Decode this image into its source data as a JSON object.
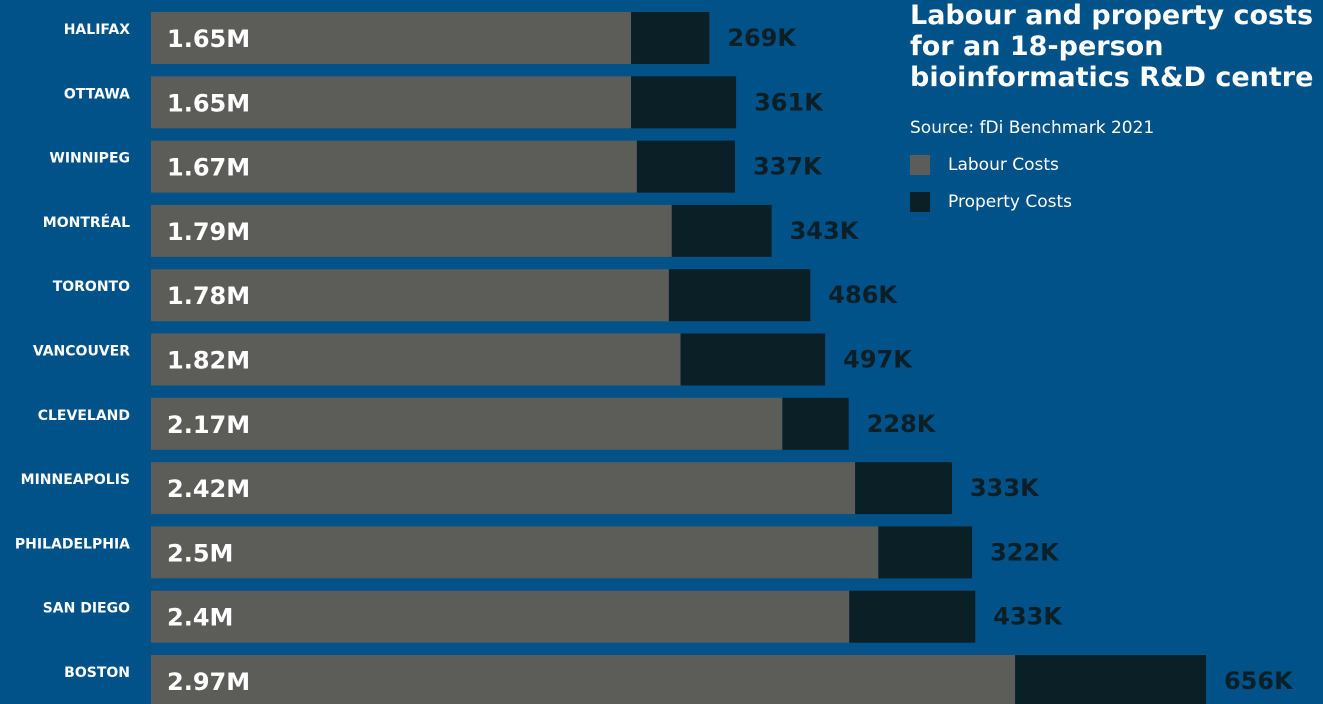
{
  "header": {
    "title": "Labour and property costs for an 18-person bioinformatics R&D centre",
    "source": "Source: fDi Benchmark 2021"
  },
  "legend": [
    {
      "label": "Labour Costs",
      "color": "#5c5c58"
    },
    {
      "label": "Property Costs",
      "color": "#0b1f27"
    }
  ],
  "colors": {
    "background": "#02528a",
    "labour": "#5c5c58",
    "property": "#0b1f27",
    "labour_label": "#ffffff",
    "property_label": "#0b1f27",
    "city_label": "#ffffff"
  },
  "chart_data": {
    "type": "bar",
    "orientation": "horizontal",
    "stacked": true,
    "title": "Labour and property costs for an 18-person bioinformatics R&D centre",
    "categories": [
      "HALIFAX",
      "OTTAWA",
      "WINNIPEG",
      "MONTRÉAL",
      "TORONTO",
      "VANCOUVER",
      "CLEVELAND",
      "MINNEAPOLIS",
      "PHILADELPHIA",
      "SAN DIEGO",
      "BOSTON"
    ],
    "series": [
      {
        "name": "Labour Costs",
        "values": [
          1650000,
          1650000,
          1670000,
          1790000,
          1780000,
          1820000,
          2170000,
          2420000,
          2500000,
          2400000,
          2970000
        ],
        "labels": [
          "1.65M",
          "1.65M",
          "1.67M",
          "1.79M",
          "1.78M",
          "1.82M",
          "2.17M",
          "2.42M",
          "2.5M",
          "2.4M",
          "2.97M"
        ]
      },
      {
        "name": "Property Costs",
        "values": [
          269000,
          361000,
          337000,
          343000,
          486000,
          497000,
          228000,
          333000,
          322000,
          433000,
          656000
        ],
        "labels": [
          "269K",
          "361K",
          "337K",
          "343K",
          "486K",
          "497K",
          "228K",
          "333K",
          "322K",
          "433K",
          "656K"
        ]
      }
    ],
    "xlim": [
      0,
      3626000
    ],
    "grid": false,
    "legend_position": "top-right"
  }
}
